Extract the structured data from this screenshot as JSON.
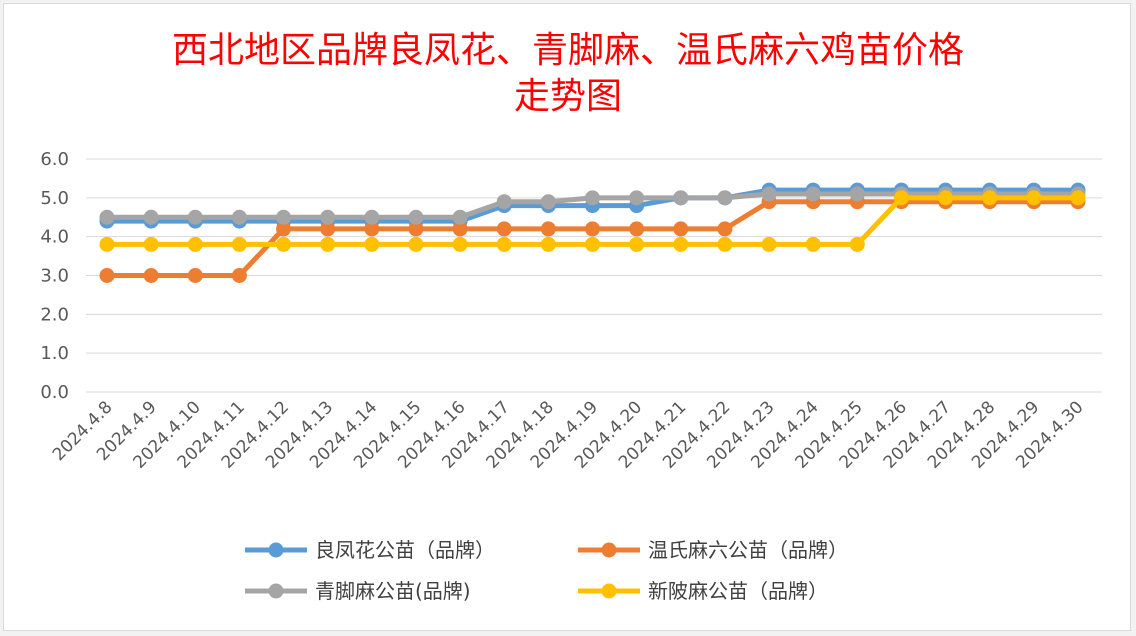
{
  "chart_data": {
    "type": "line",
    "title_lines": [
      "西北地区品牌良凤花、青脚麻、温氏麻六鸡苗价格",
      "走势图"
    ],
    "xlabel": "",
    "ylabel": "",
    "ylim": [
      0,
      6
    ],
    "yticks": [
      "0.0",
      "1.0",
      "2.0",
      "3.0",
      "4.0",
      "5.0",
      "6.0"
    ],
    "grid": true,
    "legend_position": "bottom",
    "categories": [
      "2024.4.8",
      "2024.4.9",
      "2024.4.10",
      "2024.4.11",
      "2024.4.12",
      "2024.4.13",
      "2024.4.14",
      "2024.4.15",
      "2024.4.16",
      "2024.4.17",
      "2024.4.18",
      "2024.4.19",
      "2024.4.20",
      "2024.4.21",
      "2024.4.22",
      "2024.4.23",
      "2024.4.24",
      "2024.4.25",
      "2024.4.26",
      "2024.4.27",
      "2024.4.28",
      "2024.4.29",
      "2024.4.30"
    ],
    "series": [
      {
        "name": "良凤花公苗（品牌）",
        "color": "#5b9bd5",
        "values": [
          4.4,
          4.4,
          4.4,
          4.4,
          4.4,
          4.4,
          4.4,
          4.4,
          4.4,
          4.8,
          4.8,
          4.8,
          4.8,
          5.0,
          5.0,
          5.2,
          5.2,
          5.2,
          5.2,
          5.2,
          5.2,
          5.2,
          5.2
        ]
      },
      {
        "name": "温氏麻六公苗（品牌）",
        "color": "#ed7d31",
        "values": [
          3.0,
          3.0,
          3.0,
          3.0,
          4.2,
          4.2,
          4.2,
          4.2,
          4.2,
          4.2,
          4.2,
          4.2,
          4.2,
          4.2,
          4.2,
          4.9,
          4.9,
          4.9,
          4.9,
          4.9,
          4.9,
          4.9,
          4.9
        ]
      },
      {
        "name": "青脚麻公苗(品牌)",
        "color": "#a5a5a5",
        "values": [
          4.5,
          4.5,
          4.5,
          4.5,
          4.5,
          4.5,
          4.5,
          4.5,
          4.5,
          4.9,
          4.9,
          5.0,
          5.0,
          5.0,
          5.0,
          5.1,
          5.1,
          5.1,
          5.1,
          5.1,
          5.1,
          5.1,
          5.1
        ]
      },
      {
        "name": "新陂麻公苗（品牌）",
        "color": "#ffc000",
        "values": [
          3.8,
          3.8,
          3.8,
          3.8,
          3.8,
          3.8,
          3.8,
          3.8,
          3.8,
          3.8,
          3.8,
          3.8,
          3.8,
          3.8,
          3.8,
          3.8,
          3.8,
          3.8,
          5.0,
          5.0,
          5.0,
          5.0,
          5.0
        ]
      }
    ],
    "draw_order": [
      0,
      1,
      2,
      3
    ],
    "legend_order": [
      0,
      1,
      2,
      3
    ]
  }
}
